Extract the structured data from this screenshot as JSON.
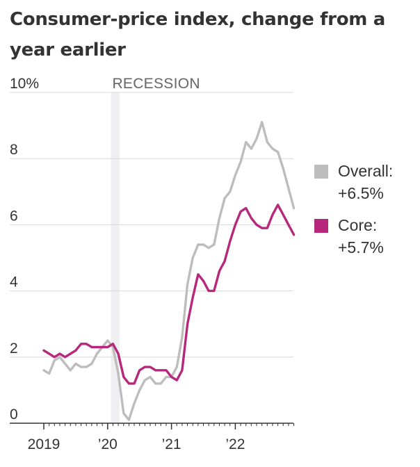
{
  "title": "Consumer-price index, change from a year earlier",
  "colors": {
    "overall": "#bdbdbd",
    "core": "#b7287c",
    "recession": "#efeff1",
    "grid": "#d9d9d9",
    "axis": "#333333"
  },
  "legend": {
    "overall": {
      "label": "Overall:",
      "value": "+6.5%"
    },
    "core": {
      "label": "Core:",
      "value": "+5.7%"
    }
  },
  "recession_label": "RECESSION",
  "chart_data": {
    "type": "line",
    "title": "Consumer-price index, change from a year earlier",
    "ylim": [
      0,
      10
    ],
    "yticks": [
      0,
      2,
      4,
      6,
      8,
      10
    ],
    "ytick_labels": [
      "0",
      "2",
      "4",
      "6",
      "8",
      "10%"
    ],
    "xlim": [
      "2019-01",
      "2022-12"
    ],
    "xtick_labels": [
      {
        "label": "2019",
        "date": "2019-01"
      },
      {
        "label": "’20",
        "date": "2020-01"
      },
      {
        "label": "’21",
        "date": "2021-01"
      },
      {
        "label": "’22",
        "date": "2022-01"
      }
    ],
    "grid": true,
    "legend_position": "right",
    "recession": {
      "label": "RECESSION",
      "start": "2020-02",
      "end": "2020-04"
    },
    "series": [
      {
        "name": "Overall",
        "color": "#bdbdbd",
        "start": "2019-01",
        "values": [
          1.6,
          1.5,
          1.9,
          2.0,
          1.8,
          1.6,
          1.8,
          1.7,
          1.7,
          1.8,
          2.1,
          2.3,
          2.5,
          2.3,
          1.5,
          0.3,
          0.1,
          0.6,
          1.0,
          1.3,
          1.4,
          1.2,
          1.2,
          1.4,
          1.4,
          1.7,
          2.6,
          4.2,
          5.0,
          5.4,
          5.4,
          5.3,
          5.4,
          6.2,
          6.8,
          7.0,
          7.5,
          7.9,
          8.5,
          8.3,
          8.6,
          9.1,
          8.5,
          8.3,
          8.2,
          7.7,
          7.1,
          6.5
        ]
      },
      {
        "name": "Core",
        "color": "#b7287c",
        "start": "2019-01",
        "values": [
          2.2,
          2.1,
          2.0,
          2.1,
          2.0,
          2.1,
          2.2,
          2.4,
          2.4,
          2.3,
          2.3,
          2.3,
          2.3,
          2.4,
          2.1,
          1.4,
          1.2,
          1.2,
          1.6,
          1.7,
          1.7,
          1.6,
          1.6,
          1.6,
          1.4,
          1.3,
          1.6,
          3.0,
          3.8,
          4.5,
          4.3,
          4.0,
          4.0,
          4.6,
          4.9,
          5.5,
          6.0,
          6.4,
          6.5,
          6.2,
          6.0,
          5.9,
          5.9,
          6.3,
          6.6,
          6.3,
          6.0,
          5.7
        ]
      }
    ]
  }
}
